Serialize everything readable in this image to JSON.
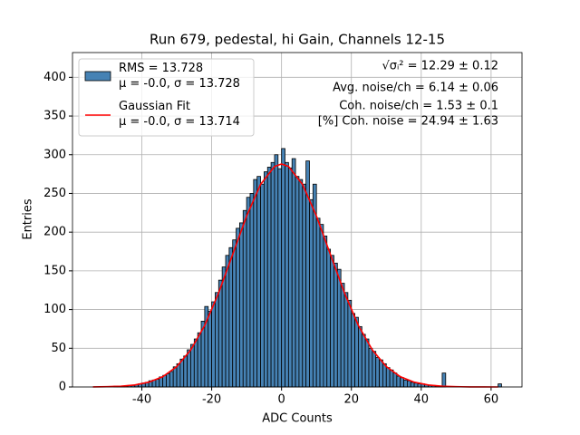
{
  "chart_data": {
    "type": "histogram",
    "title": "Run 679, pedestal, hi Gain, Channels 12-15",
    "xlabel": "ADC Counts",
    "ylabel": "Entries",
    "xlim": [
      -59.85,
      68.85
    ],
    "ylim": [
      0,
      432
    ],
    "xticks": [
      -40,
      -20,
      0,
      20,
      40,
      60
    ],
    "yticks": [
      0,
      50,
      100,
      150,
      200,
      250,
      300,
      350,
      400
    ],
    "grid": true,
    "legend": "upper left",
    "bins": [
      -54,
      -53,
      -52,
      -51,
      -50,
      -49,
      -48,
      -47,
      -46,
      -45,
      -44,
      -43,
      -42,
      -41,
      -40,
      -39,
      -38,
      -37,
      -36,
      -35,
      -34,
      -33,
      -32,
      -31,
      -30,
      -29,
      -28,
      -27,
      -26,
      -25,
      -24,
      -23,
      -22,
      -21,
      -20,
      -19,
      -18,
      -17,
      -16,
      -15,
      -14,
      -13,
      -12,
      -11,
      -10,
      -9,
      -8,
      -7,
      -6,
      -5,
      -4,
      -3,
      -2,
      -1,
      0,
      1,
      2,
      3,
      4,
      5,
      6,
      7,
      8,
      9,
      10,
      11,
      12,
      13,
      14,
      15,
      16,
      17,
      18,
      19,
      20,
      21,
      22,
      23,
      24,
      25,
      26,
      27,
      28,
      29,
      30,
      31,
      32,
      33,
      34,
      35,
      36,
      37,
      38,
      39,
      40,
      41,
      42,
      43,
      44,
      45,
      46,
      47,
      48,
      49,
      50,
      51,
      52,
      53,
      54,
      55,
      56,
      57,
      58,
      59,
      60,
      61,
      62,
      63
    ],
    "series": [
      {
        "name": "RMS = 13.728\nμ = -0.0, σ = 13.728",
        "color": "#4682b4",
        "edgecolor": "#000000",
        "values": [
          0,
          0,
          0,
          0,
          0,
          0,
          1,
          1,
          1,
          1,
          2,
          2,
          3,
          4,
          5,
          6,
          8,
          9,
          10,
          13,
          15,
          17,
          20,
          26,
          30,
          36,
          40,
          48,
          55,
          62,
          70,
          85,
          104,
          98,
          110,
          122,
          138,
          155,
          170,
          180,
          190,
          205,
          212,
          228,
          245,
          250,
          268,
          272,
          262,
          278,
          284,
          290,
          300,
          282,
          308,
          290,
          283,
          295,
          272,
          268,
          262,
          292,
          242,
          262,
          218,
          210,
          195,
          178,
          170,
          160,
          152,
          134,
          122,
          112,
          95,
          90,
          78,
          68,
          62,
          50,
          46,
          38,
          35,
          30,
          25,
          22,
          18,
          14,
          12,
          9,
          8,
          6,
          5,
          4,
          4,
          3,
          2,
          2,
          1,
          1,
          18,
          0,
          0,
          0,
          0,
          0,
          0,
          0,
          0,
          0,
          0,
          0,
          0,
          0,
          0,
          0,
          4
        ]
      },
      {
        "name": "Gaussian Fit\nμ = -0.0, σ = 13.714",
        "type": "line",
        "color": "#ff0000",
        "x": [
          -54,
          -50,
          -46,
          -42,
          -38,
          -34,
          -30,
          -26,
          -22,
          -18,
          -14,
          -10,
          -6,
          -2,
          0,
          2,
          6,
          10,
          14,
          18,
          22,
          26,
          30,
          34,
          38,
          42,
          46,
          50,
          54,
          58,
          62
        ],
        "values": [
          0.12,
          0.37,
          1.0,
          2.6,
          6.2,
          13.3,
          26.3,
          47.8,
          79.5,
          121.7,
          171.1,
          220.7,
          261.7,
          284.9,
          288,
          284.9,
          261.7,
          220.7,
          171.1,
          121.7,
          79.5,
          47.8,
          26.3,
          13.3,
          6.2,
          2.6,
          1.0,
          0.37,
          0.12,
          0.03,
          0.01
        ]
      }
    ],
    "annotations": [
      "√σᵢ² = 12.29 ± 0.12",
      "Avg. noise/ch = 6.14 ± 0.06",
      "Coh. noise/ch = 1.53 ± 0.1",
      "[%] Coh. noise = 24.94 ± 1.63"
    ]
  }
}
